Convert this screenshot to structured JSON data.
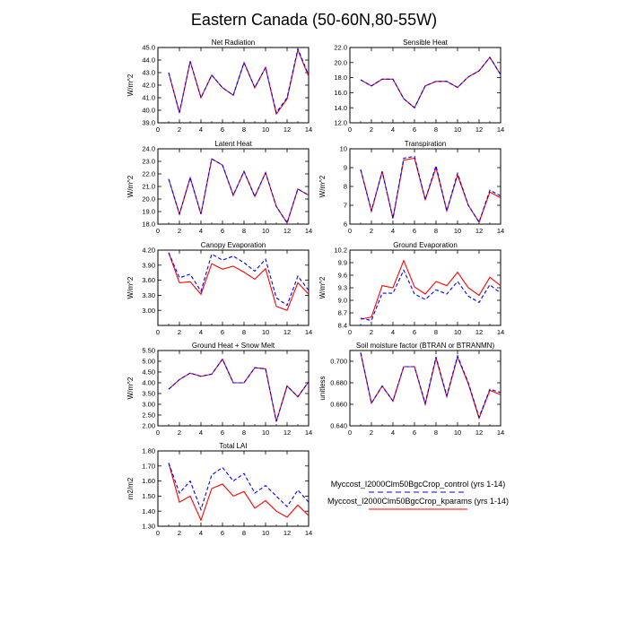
{
  "title": "Eastern Canada (50-60N,80-55W)",
  "colors": {
    "control": "#0000ff",
    "kparams": "#ff0000",
    "axis": "#000000"
  },
  "legend": {
    "entries": [
      {
        "label": "Myccost_I2000Clm50BgcCrop_control (yrs 1-14)",
        "color": "#0000ff",
        "dash": "dashed"
      },
      {
        "label": "Myccost_I2000Clm50BgcCrop_kparams (yrs 1-14)",
        "color": "#ff0000",
        "dash": "solid"
      }
    ]
  },
  "chart_data": [
    {
      "type": "line",
      "title": "Net Radiation",
      "ylabel": "W/m^2",
      "xlim": [
        0,
        14
      ],
      "xticks": [
        0,
        2,
        4,
        6,
        8,
        10,
        12,
        14
      ],
      "xtick_labels": [
        "0",
        "2",
        "4",
        "6",
        "8",
        "10",
        "12",
        "14"
      ],
      "ylim": [
        39.0,
        45.0
      ],
      "yticks": [
        39.0,
        40.0,
        41.0,
        42.0,
        43.0,
        44.0,
        45.0
      ],
      "ytick_labels": [
        "39.0",
        "40.0",
        "41.0",
        "42.0",
        "43.0",
        "44.0",
        "45.0"
      ],
      "x": [
        1,
        2,
        3,
        4,
        5,
        6,
        7,
        8,
        9,
        10,
        11,
        12,
        13,
        14
      ],
      "series": [
        {
          "key": "control",
          "values": [
            43.0,
            39.8,
            43.9,
            41.0,
            42.8,
            41.8,
            41.2,
            43.8,
            41.8,
            43.4,
            39.8,
            41.0,
            44.9,
            42.8
          ]
        },
        {
          "key": "kparams",
          "values": [
            43.0,
            39.8,
            43.9,
            41.0,
            42.8,
            41.8,
            41.2,
            43.8,
            41.8,
            43.4,
            39.7,
            40.9,
            44.8,
            42.7
          ]
        }
      ]
    },
    {
      "type": "line",
      "title": "Sensible Heat",
      "ylabel": "",
      "xlim": [
        0,
        14
      ],
      "xticks": [
        0,
        2,
        4,
        6,
        8,
        10,
        12,
        14
      ],
      "xtick_labels": [
        "0",
        "2",
        "4",
        "6",
        "8",
        "10",
        "12",
        "14"
      ],
      "ylim": [
        12.0,
        22.0
      ],
      "yticks": [
        12.0,
        14.0,
        16.0,
        18.0,
        20.0,
        22.0
      ],
      "ytick_labels": [
        "12.0",
        "14.0",
        "16.0",
        "18.0",
        "20.0",
        "22.0"
      ],
      "x": [
        1,
        2,
        3,
        4,
        5,
        6,
        7,
        8,
        9,
        10,
        11,
        12,
        13,
        14
      ],
      "series": [
        {
          "key": "control",
          "values": [
            17.7,
            16.9,
            17.8,
            17.8,
            15.2,
            14.0,
            16.9,
            17.5,
            17.5,
            16.7,
            18.1,
            18.9,
            20.7,
            18.4
          ]
        },
        {
          "key": "kparams",
          "values": [
            17.7,
            16.9,
            17.8,
            17.8,
            15.2,
            14.0,
            16.9,
            17.5,
            17.5,
            16.7,
            18.1,
            18.9,
            20.7,
            18.4
          ]
        }
      ]
    },
    {
      "type": "line",
      "title": "Latent Heat",
      "ylabel": "W/m^2",
      "xlim": [
        0,
        14
      ],
      "xticks": [
        0,
        2,
        4,
        6,
        8,
        10,
        12,
        14
      ],
      "xtick_labels": [
        "0",
        "2",
        "4",
        "6",
        "8",
        "10",
        "12",
        "14"
      ],
      "ylim": [
        18.0,
        24.0
      ],
      "yticks": [
        18.0,
        19.0,
        20.0,
        21.0,
        22.0,
        23.0,
        24.0
      ],
      "ytick_labels": [
        "18.0",
        "19.0",
        "20.0",
        "21.0",
        "22.0",
        "23.0",
        "24.0"
      ],
      "x": [
        1,
        2,
        3,
        4,
        5,
        6,
        7,
        8,
        9,
        10,
        11,
        12,
        13,
        14
      ],
      "series": [
        {
          "key": "control",
          "values": [
            21.6,
            18.8,
            21.7,
            18.8,
            23.2,
            22.7,
            20.3,
            22.2,
            20.2,
            22.1,
            19.4,
            18.1,
            20.8,
            20.3
          ]
        },
        {
          "key": "kparams",
          "values": [
            21.6,
            18.8,
            21.7,
            18.8,
            23.2,
            22.7,
            20.3,
            22.2,
            20.2,
            22.1,
            19.4,
            18.1,
            20.8,
            20.3
          ]
        }
      ]
    },
    {
      "type": "line",
      "title": "Transpiration",
      "ylabel": "W/m^2",
      "xlim": [
        0,
        14
      ],
      "xticks": [
        0,
        2,
        4,
        6,
        8,
        10,
        12,
        14
      ],
      "xtick_labels": [
        "0",
        "2",
        "4",
        "6",
        "8",
        "10",
        "12",
        "14"
      ],
      "ylim": [
        6,
        10
      ],
      "yticks": [
        6,
        7,
        8,
        9,
        10
      ],
      "ytick_labels": [
        "6",
        "7",
        "8",
        "9",
        "10"
      ],
      "x": [
        1,
        2,
        3,
        4,
        5,
        6,
        7,
        8,
        9,
        10,
        11,
        12,
        13,
        14
      ],
      "series": [
        {
          "key": "control",
          "values": [
            8.9,
            6.7,
            8.8,
            6.3,
            9.5,
            9.6,
            7.3,
            9.1,
            6.7,
            8.7,
            7.0,
            6.1,
            7.8,
            7.5
          ]
        },
        {
          "key": "kparams",
          "values": [
            8.9,
            6.7,
            8.8,
            6.3,
            9.4,
            9.5,
            7.3,
            9.0,
            6.7,
            8.6,
            7.0,
            6.1,
            7.7,
            7.4
          ]
        }
      ]
    },
    {
      "type": "line",
      "title": "Canopy Evaporation",
      "ylabel": "W/m^2",
      "xlim": [
        0,
        14
      ],
      "xticks": [
        0,
        2,
        4,
        6,
        8,
        10,
        12,
        14
      ],
      "xtick_labels": [
        "0",
        "2",
        "4",
        "6",
        "8",
        "10",
        "12",
        "14"
      ],
      "ylim": [
        2.7,
        4.2
      ],
      "yticks": [
        3.0,
        3.3,
        3.6,
        3.9,
        4.2
      ],
      "ytick_labels": [
        "3.00",
        "3.30",
        "3.60",
        "3.90",
        "4.20"
      ],
      "x": [
        1,
        2,
        3,
        4,
        5,
        6,
        7,
        8,
        9,
        10,
        11,
        12,
        13,
        14
      ],
      "series": [
        {
          "key": "control",
          "values": [
            4.15,
            3.65,
            3.72,
            3.38,
            4.12,
            4.0,
            4.08,
            3.95,
            3.78,
            4.02,
            3.25,
            3.1,
            3.68,
            3.4
          ]
        },
        {
          "key": "kparams",
          "values": [
            4.15,
            3.55,
            3.57,
            3.32,
            3.93,
            3.82,
            3.88,
            3.76,
            3.62,
            3.83,
            3.08,
            3.0,
            3.55,
            3.32
          ]
        }
      ]
    },
    {
      "type": "line",
      "title": "Ground Evaporation",
      "ylabel": "W/m^2",
      "xlim": [
        0,
        14
      ],
      "xticks": [
        0,
        2,
        4,
        6,
        8,
        10,
        12,
        14
      ],
      "xtick_labels": [
        "0",
        "2",
        "4",
        "6",
        "8",
        "10",
        "12",
        "14"
      ],
      "ylim": [
        8.4,
        10.2
      ],
      "yticks": [
        8.4,
        8.7,
        9.0,
        9.3,
        9.6,
        9.9,
        10.2
      ],
      "ytick_labels": [
        "8.4",
        "8.7",
        "9.0",
        "9.3",
        "9.6",
        "9.9",
        "10.2"
      ],
      "x": [
        1,
        2,
        3,
        4,
        5,
        6,
        7,
        8,
        9,
        10,
        11,
        12,
        13,
        14
      ],
      "series": [
        {
          "key": "control",
          "values": [
            8.57,
            8.52,
            9.17,
            9.17,
            9.72,
            9.15,
            9.02,
            9.25,
            9.15,
            9.45,
            9.1,
            8.95,
            9.37,
            9.17
          ]
        },
        {
          "key": "kparams",
          "values": [
            8.55,
            8.6,
            9.35,
            9.3,
            9.95,
            9.32,
            9.15,
            9.45,
            9.35,
            9.67,
            9.3,
            9.12,
            9.55,
            9.35
          ]
        }
      ]
    },
    {
      "type": "line",
      "title": "Ground Heat + Snow Melt",
      "ylabel": "W/m^2",
      "xlim": [
        0,
        14
      ],
      "xticks": [
        0,
        2,
        4,
        6,
        8,
        10,
        12,
        14
      ],
      "xtick_labels": [
        "0",
        "2",
        "4",
        "6",
        "8",
        "10",
        "12",
        "14"
      ],
      "ylim": [
        2.0,
        5.5
      ],
      "yticks": [
        2.0,
        2.5,
        3.0,
        3.5,
        4.0,
        4.5,
        5.0,
        5.5
      ],
      "ytick_labels": [
        "2.00",
        "2.50",
        "3.00",
        "3.50",
        "4.00",
        "4.50",
        "5.00",
        "5.50"
      ],
      "x": [
        1,
        2,
        3,
        4,
        5,
        6,
        7,
        8,
        9,
        10,
        11,
        12,
        13,
        14
      ],
      "series": [
        {
          "key": "control",
          "values": [
            3.7,
            4.15,
            4.45,
            4.3,
            4.4,
            5.1,
            4.0,
            4.0,
            4.7,
            4.65,
            2.2,
            3.85,
            3.35,
            4.05
          ]
        },
        {
          "key": "kparams",
          "values": [
            3.7,
            4.15,
            4.45,
            4.3,
            4.4,
            5.1,
            4.0,
            4.0,
            4.7,
            4.65,
            2.2,
            3.85,
            3.35,
            4.05
          ]
        }
      ]
    },
    {
      "type": "line",
      "title": "Soil moisture factor (BTRAN or BTRANMN)",
      "ylabel": "unitless",
      "xlim": [
        0,
        14
      ],
      "xticks": [
        0,
        2,
        4,
        6,
        8,
        10,
        12,
        14
      ],
      "xtick_labels": [
        "0",
        "2",
        "4",
        "6",
        "8",
        "10",
        "12",
        "14"
      ],
      "ylim": [
        0.64,
        0.71
      ],
      "yticks": [
        0.64,
        0.66,
        0.68,
        0.7
      ],
      "ytick_labels": [
        "0.640",
        "0.660",
        "0.680",
        "0.700"
      ],
      "x": [
        1,
        2,
        3,
        4,
        5,
        6,
        7,
        8,
        9,
        10,
        11,
        12,
        13,
        14
      ],
      "series": [
        {
          "key": "control",
          "values": [
            0.708,
            0.661,
            0.677,
            0.663,
            0.695,
            0.695,
            0.661,
            0.704,
            0.668,
            0.705,
            0.68,
            0.648,
            0.674,
            0.671
          ]
        },
        {
          "key": "kparams",
          "values": [
            0.708,
            0.661,
            0.677,
            0.663,
            0.695,
            0.695,
            0.66,
            0.703,
            0.667,
            0.704,
            0.679,
            0.647,
            0.673,
            0.669
          ]
        }
      ]
    },
    {
      "type": "line",
      "title": "Total LAI",
      "ylabel": "m2/m2",
      "xlim": [
        0,
        14
      ],
      "xticks": [
        0,
        2,
        4,
        6,
        8,
        10,
        12,
        14
      ],
      "xtick_labels": [
        "0",
        "2",
        "4",
        "6",
        "8",
        "10",
        "12",
        "14"
      ],
      "ylim": [
        1.3,
        1.8
      ],
      "yticks": [
        1.3,
        1.4,
        1.5,
        1.6,
        1.7,
        1.8
      ],
      "ytick_labels": [
        "1.30",
        "1.40",
        "1.50",
        "1.60",
        "1.70",
        "1.80"
      ],
      "x": [
        1,
        2,
        3,
        4,
        5,
        6,
        7,
        8,
        9,
        10,
        11,
        12,
        13,
        14
      ],
      "series": [
        {
          "key": "control",
          "values": [
            1.72,
            1.52,
            1.6,
            1.41,
            1.64,
            1.69,
            1.6,
            1.65,
            1.52,
            1.57,
            1.5,
            1.43,
            1.54,
            1.46
          ]
        },
        {
          "key": "kparams",
          "values": [
            1.72,
            1.46,
            1.5,
            1.34,
            1.55,
            1.58,
            1.5,
            1.53,
            1.42,
            1.47,
            1.4,
            1.36,
            1.44,
            1.37
          ]
        }
      ]
    }
  ]
}
